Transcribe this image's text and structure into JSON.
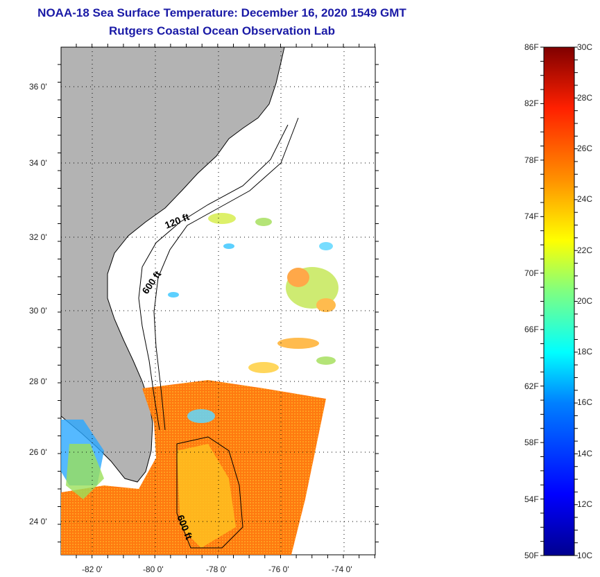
{
  "header": {
    "title": "NOAA-18 Sea Surface Temperature:  December 16, 2020 1549 GMT",
    "subtitle": "Rutgers Coastal Ocean Observation Lab"
  },
  "map": {
    "lon_labels": [
      "-82 0'",
      "-80 0'",
      "-78 0'",
      "-76 0'",
      "-74 0'"
    ],
    "lat_labels": [
      "36 0'",
      "34 0'",
      "32 0'",
      "30 0'",
      "28 0'",
      "26 0'",
      "24 0'"
    ],
    "contour_labels": [
      "120 ft",
      "600 ft",
      "600 ft"
    ],
    "colors": {
      "land": "#b3b3b3",
      "grid": "#000000"
    }
  },
  "colorbar": {
    "f_labels": [
      "86F",
      "82F",
      "78F",
      "74F",
      "70F",
      "66F",
      "62F",
      "58F",
      "54F",
      "50F"
    ],
    "c_labels": [
      "30C",
      "28C",
      "26C",
      "24C",
      "22C",
      "20C",
      "18C",
      "16C",
      "14C",
      "12C",
      "10C"
    ],
    "min_c": 10,
    "max_c": 30
  }
}
